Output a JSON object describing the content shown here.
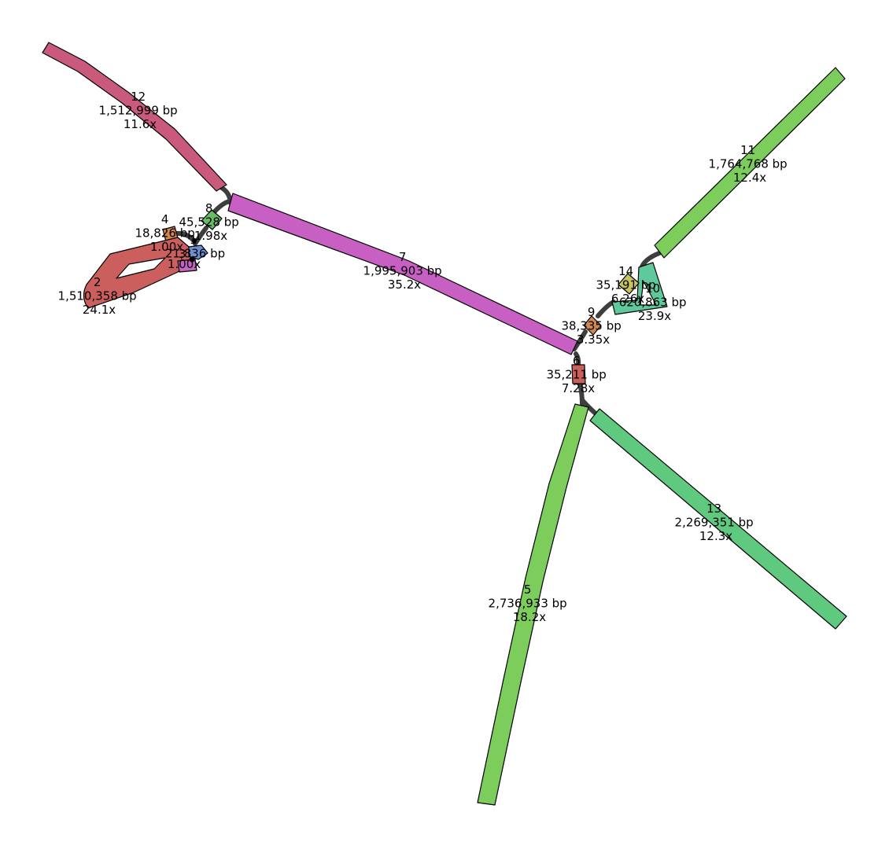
{
  "graph": {
    "nodes": [
      {
        "id": "2",
        "length": "1,510,358 bp",
        "depth": "24.1x",
        "color": "#cb5f5d"
      },
      {
        "id": "4",
        "length": "18,826 bp",
        "depth": "1.00x",
        "color": "#d2874e"
      },
      {
        "id": "3",
        "length": "",
        "depth": "1.00x",
        "color": "#c564c2"
      },
      {
        "id": "1",
        "length": "21,836 bp",
        "depth": "",
        "color": "#6f8fd4"
      },
      {
        "id": "8",
        "length": "45,528 bp",
        "depth": "1.98x",
        "color": "#66bd66"
      },
      {
        "id": "12",
        "length": "1,512,999 bp",
        "depth": "11.6x",
        "color": "#c95a7c"
      },
      {
        "id": "7",
        "length": "1,995,903 bp",
        "depth": "35.2x",
        "color": "#c860c4"
      },
      {
        "id": "14",
        "length": "35,191 bp",
        "depth": "6.26x",
        "color": "#c9c35e"
      },
      {
        "id": "10",
        "length": "620,863 bp",
        "depth": "23.9x",
        "color": "#5fc99e"
      },
      {
        "id": "9",
        "length": "38,335 bp",
        "depth": "3.35x",
        "color": "#d2874e"
      },
      {
        "id": "6",
        "length": "35,211 bp",
        "depth": "7.28x",
        "color": "#cb5f5d"
      },
      {
        "id": "11",
        "length": "1,764,768 bp",
        "depth": "12.4x",
        "color": "#7ccd5c"
      },
      {
        "id": "5",
        "length": "2,736,933 bp",
        "depth": "18.2x",
        "color": "#7ccd5c"
      },
      {
        "id": "13",
        "length": "2,269,351 bp",
        "depth": "12.3x",
        "color": "#5fc97f"
      }
    ]
  }
}
